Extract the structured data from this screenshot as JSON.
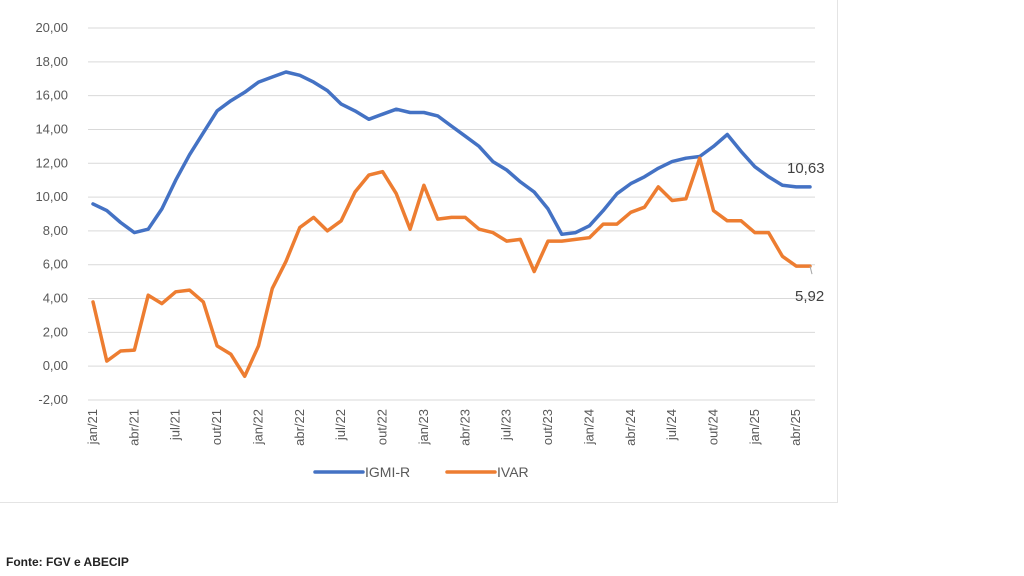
{
  "chart_data": {
    "type": "line",
    "ylim": [
      -2,
      20
    ],
    "yticks": [
      "20,00",
      "18,00",
      "16,00",
      "14,00",
      "12,00",
      "10,00",
      "8,00",
      "6,00",
      "4,00",
      "2,00",
      "0,00",
      "-2,00"
    ],
    "ytick_values": [
      20,
      18,
      16,
      14,
      12,
      10,
      8,
      6,
      4,
      2,
      0,
      -2
    ],
    "grid": true,
    "legend_position": "bottom",
    "x": [
      "jan/21",
      "fev/21",
      "mar/21",
      "abr/21",
      "mai/21",
      "jun/21",
      "jul/21",
      "ago/21",
      "set/21",
      "out/21",
      "nov/21",
      "dez/21",
      "jan/22",
      "fev/22",
      "mar/22",
      "abr/22",
      "mai/22",
      "jun/22",
      "jul/22",
      "ago/22",
      "set/22",
      "out/22",
      "nov/22",
      "dez/22",
      "jan/23",
      "fev/23",
      "mar/23",
      "abr/23",
      "mai/23",
      "jun/23",
      "jul/23",
      "ago/23",
      "set/23",
      "out/23",
      "nov/23",
      "dez/23",
      "jan/24",
      "fev/24",
      "mar/24",
      "abr/24",
      "mai/24",
      "jun/24",
      "jul/24",
      "ago/24",
      "set/24",
      "out/24",
      "nov/24",
      "dez/24",
      "jan/25",
      "fev/25",
      "mar/25",
      "abr/25",
      "mai/25"
    ],
    "x_tick_labels": [
      "jan/21",
      "abr/21",
      "jul/21",
      "out/21",
      "jan/22",
      "abr/22",
      "jul/22",
      "out/22",
      "jan/23",
      "abr/23",
      "jul/23",
      "out/23",
      "jan/24",
      "abr/24",
      "jul/24",
      "out/24",
      "jan/25",
      "abr/25"
    ],
    "x_tick_indices": [
      0,
      3,
      6,
      9,
      12,
      15,
      18,
      21,
      24,
      27,
      30,
      33,
      36,
      39,
      42,
      45,
      48,
      51
    ],
    "series": [
      {
        "name": "IGMI-R",
        "color": "#4472C4",
        "values": [
          9.6,
          9.2,
          8.5,
          7.9,
          8.1,
          9.3,
          11.0,
          12.5,
          13.8,
          15.1,
          15.7,
          16.2,
          16.8,
          17.1,
          17.4,
          17.2,
          16.8,
          16.3,
          15.5,
          15.1,
          14.6,
          14.9,
          15.2,
          15.0,
          15.0,
          14.8,
          14.2,
          13.6,
          13.0,
          12.1,
          11.6,
          10.9,
          10.3,
          9.3,
          7.8,
          7.9,
          8.3,
          9.2,
          10.2,
          10.8,
          11.2,
          11.7,
          12.1,
          12.3,
          12.4,
          13.0,
          13.7,
          12.7,
          11.8,
          11.2,
          10.7,
          10.6,
          10.6
        ]
      },
      {
        "name": "IVAR",
        "color": "#ED7D31",
        "values": [
          3.8,
          0.3,
          0.9,
          0.95,
          4.2,
          3.7,
          4.4,
          4.5,
          3.8,
          1.2,
          0.7,
          -0.6,
          1.2,
          4.6,
          6.2,
          8.2,
          8.8,
          8.0,
          8.6,
          10.3,
          11.3,
          11.5,
          10.2,
          8.1,
          10.7,
          8.7,
          8.8,
          8.8,
          8.1,
          7.9,
          7.4,
          7.5,
          5.6,
          7.4,
          7.4,
          7.5,
          7.6,
          8.4,
          8.4,
          9.1,
          9.4,
          10.6,
          9.8,
          9.9,
          12.3,
          9.2,
          8.6,
          8.6,
          7.9,
          7.9,
          6.5,
          5.92,
          5.92
        ]
      }
    ],
    "annotations": [
      {
        "series": "IGMI-R",
        "text": "10,63"
      },
      {
        "series": "IVAR",
        "text": "5,92"
      }
    ]
  },
  "source_note": "Fonte: FGV e ABECIP"
}
